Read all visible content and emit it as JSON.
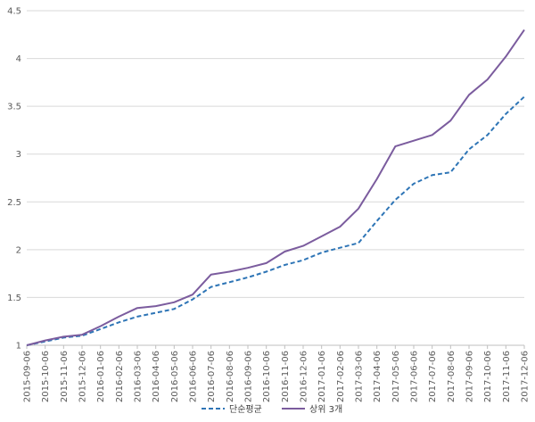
{
  "chart_data": {
    "type": "line",
    "title": "",
    "xlabel": "",
    "ylabel": "",
    "ylim": [
      1,
      4.5
    ],
    "y_ticks": [
      1,
      1.5,
      2,
      2.5,
      3,
      3.5,
      4,
      4.5
    ],
    "y_tick_labels": [
      "1",
      "1.5",
      "2",
      "2.5",
      "3",
      "3.5",
      "4",
      "4.5"
    ],
    "x": [
      "2015-09-06",
      "2015-10-06",
      "2015-11-06",
      "2015-12-06",
      "2016-01-06",
      "2016-02-06",
      "2016-03-06",
      "2016-04-06",
      "2016-05-06",
      "2016-06-06",
      "2016-07-06",
      "2016-08-06",
      "2016-09-06",
      "2016-10-06",
      "2016-11-06",
      "2016-12-06",
      "2017-01-06",
      "2017-02-06",
      "2017-03-06",
      "2017-04-06",
      "2017-05-06",
      "2017-06-06",
      "2017-07-06",
      "2017-08-06",
      "2017-09-06",
      "2017-10-06",
      "2017-11-06",
      "2017-12-06"
    ],
    "grid": "horizontal",
    "legend_position": "bottom",
    "series": [
      {
        "name": "단순평균",
        "style": "dashed",
        "color": "#2e75b6",
        "values": [
          1.0,
          1.04,
          1.08,
          1.1,
          1.17,
          1.24,
          1.3,
          1.34,
          1.38,
          1.48,
          1.61,
          1.66,
          1.71,
          1.77,
          1.84,
          1.89,
          1.97,
          2.02,
          2.07,
          2.3,
          2.52,
          2.69,
          2.78,
          2.81,
          3.05,
          3.2,
          3.42,
          3.6
        ]
      },
      {
        "name": "상위 3개",
        "style": "solid",
        "color": "#7b5c9e",
        "values": [
          1.0,
          1.05,
          1.09,
          1.11,
          1.2,
          1.3,
          1.39,
          1.41,
          1.45,
          1.53,
          1.74,
          1.77,
          1.81,
          1.86,
          1.98,
          2.04,
          2.14,
          2.24,
          2.43,
          2.74,
          3.08,
          3.14,
          3.2,
          3.35,
          3.62,
          3.78,
          4.02,
          4.3
        ]
      }
    ]
  }
}
